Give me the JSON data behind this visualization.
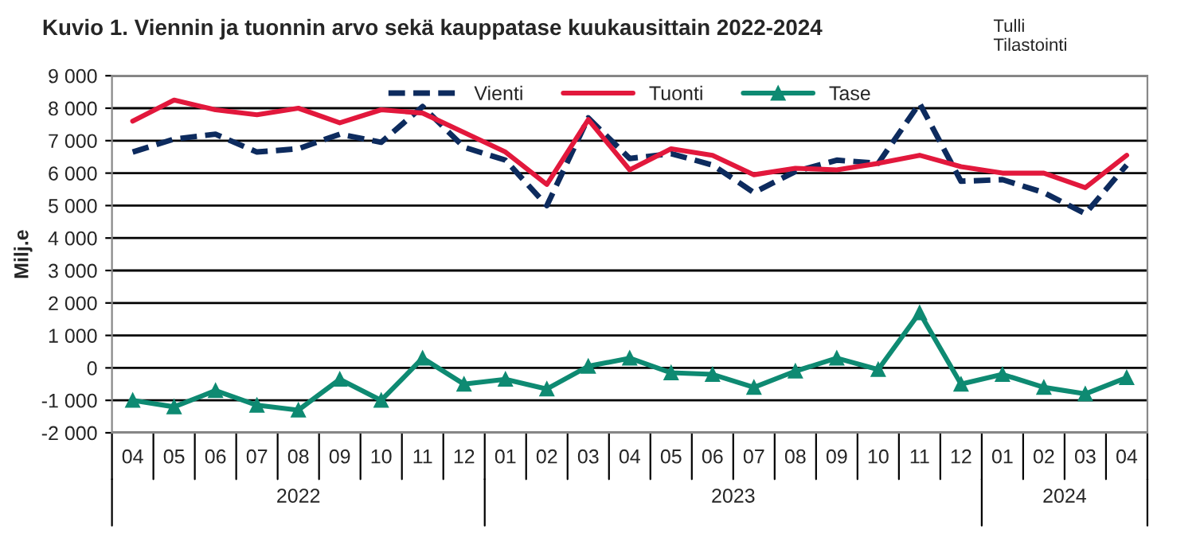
{
  "chart_data": {
    "type": "line",
    "title": "Kuvio 1. Viennin ja tuonnin arvo sekä kauppatase kuukausittain 2022-2024",
    "ylabel": "Milj.e",
    "annotations": [
      "Tulli\nTilastointi",
      "2022",
      "2023",
      "2024"
    ],
    "categories": [
      "04",
      "05",
      "06",
      "07",
      "08",
      "09",
      "10",
      "11",
      "12",
      "01",
      "02",
      "03",
      "04",
      "05",
      "06",
      "07",
      "08",
      "09",
      "10",
      "11",
      "12",
      "01",
      "02",
      "03",
      "04"
    ],
    "series": [
      {
        "name": "Vienti",
        "color": "#0d2b5e",
        "line_style": "dashed",
        "values": [
          6650,
          7050,
          7200,
          6650,
          6750,
          7200,
          6950,
          8050,
          6800,
          6400,
          5000,
          7700,
          6450,
          6600,
          6250,
          5400,
          6050,
          6400,
          6300,
          8150,
          5750,
          5800,
          5400,
          4750,
          6250
        ]
      },
      {
        "name": "Tuonti",
        "color": "#e2183c",
        "line_style": "solid",
        "values": [
          7600,
          8250,
          7950,
          7800,
          8000,
          7550,
          7950,
          7850,
          7250,
          6650,
          5650,
          7650,
          6100,
          6750,
          6550,
          5950,
          6150,
          6100,
          6300,
          6550,
          6200,
          6000,
          6000,
          5550,
          6550
        ]
      },
      {
        "name": "Tase",
        "color": "#0e8a72",
        "line_style": "solid",
        "marker": "triangle",
        "values": [
          -1000,
          -1200,
          -700,
          -1150,
          -1300,
          -350,
          -1000,
          300,
          -500,
          -350,
          -650,
          50,
          300,
          -150,
          -200,
          -600,
          -100,
          300,
          -50,
          1700,
          -500,
          -200,
          -600,
          -800,
          -300
        ]
      }
    ],
    "ylim": [
      -2000,
      9000
    ],
    "yticks": [
      {
        "value": -2000,
        "label": "-2 000"
      },
      {
        "value": -1000,
        "label": "-1 000"
      },
      0,
      {
        "value": 1000,
        "label": "1 000"
      },
      {
        "value": 2000,
        "label": "2 000"
      },
      {
        "value": 3000,
        "label": "3 000"
      },
      {
        "value": 4000,
        "label": "4 000"
      },
      {
        "value": 5000,
        "label": "5 000"
      },
      {
        "value": 6000,
        "label": "6 000"
      },
      {
        "value": 7000,
        "label": "7 000"
      },
      {
        "value": 8000,
        "label": "8 000"
      },
      {
        "value": 9000,
        "label": "9 000"
      }
    ],
    "grid": "y",
    "legend": "top"
  }
}
